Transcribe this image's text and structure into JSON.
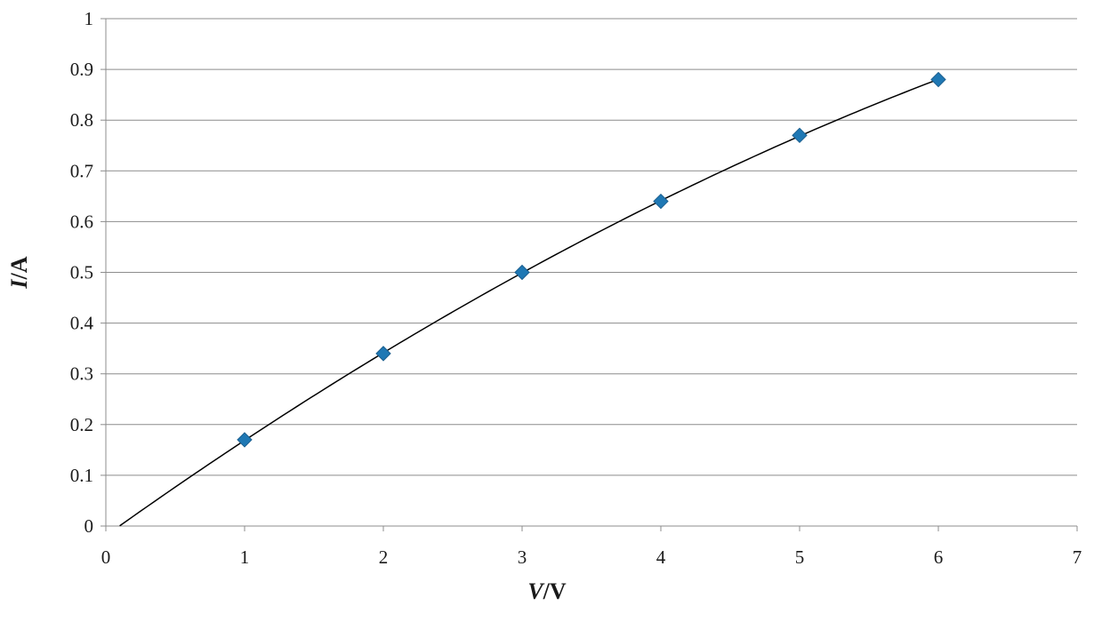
{
  "chart_data": {
    "type": "scatter",
    "title": "",
    "xlabel": {
      "var": "V",
      "unit": "/V"
    },
    "ylabel": {
      "var": "I",
      "unit": "/A"
    },
    "xlim": [
      0,
      7
    ],
    "ylim": [
      0,
      1
    ],
    "x_ticks": [
      0,
      1,
      2,
      3,
      4,
      5,
      6,
      7
    ],
    "y_ticks": [
      0,
      0.1,
      0.2,
      0.3,
      0.4,
      0.5,
      0.6,
      0.7,
      0.8,
      0.9,
      1
    ],
    "x_tick_labels": [
      "0",
      "1",
      "2",
      "3",
      "4",
      "5",
      "6",
      "7"
    ],
    "y_tick_labels": [
      "0",
      "0.1",
      "0.2",
      "0.3",
      "0.4",
      "0.5",
      "0.6",
      "0.7",
      "0.8",
      "0.9",
      "1"
    ],
    "grid": "horizontal",
    "legend": "none",
    "series": [
      {
        "marker": "diamond",
        "color": "#1f78b4",
        "x": [
          1,
          2,
          3,
          4,
          5,
          6
        ],
        "y": [
          0.17,
          0.34,
          0.5,
          0.64,
          0.77,
          0.88
        ]
      }
    ],
    "trendline": {
      "type": "polynomial",
      "color": "#000000",
      "x_start": 0.1,
      "x_end": 6,
      "x": [
        0.1,
        1,
        2,
        3,
        4,
        5,
        6
      ],
      "y": [
        0,
        0.17,
        0.34,
        0.5,
        0.64,
        0.77,
        0.88
      ]
    }
  }
}
